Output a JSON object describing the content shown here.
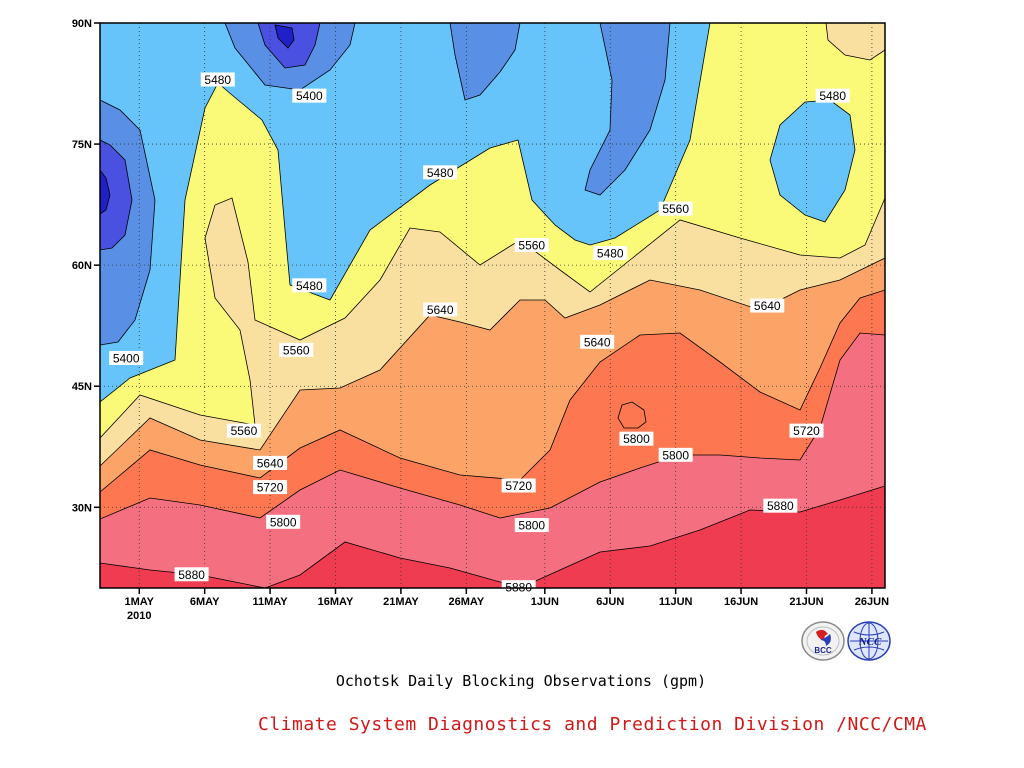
{
  "title": "Ochotsk Daily Blocking Observations (gpm)",
  "credit": "Climate System Diagnostics and Prediction Division /NCC/CMA",
  "logos": {
    "bcc": {
      "icon": "bcc-logo",
      "text": "BCC"
    },
    "ncc": {
      "icon": "ncc-logo",
      "text": "NCC"
    }
  },
  "chart_data": {
    "type": "heatmap",
    "subtype": "filled-contour time-latitude",
    "variable": "500hPa geopotential height (gpm)",
    "x_ticks": [
      "1MAY",
      "6MAY",
      "11MAY",
      "16MAY",
      "21MAY",
      "26MAY",
      "1JUN",
      "6JUN",
      "11JUN",
      "16JUN",
      "21JUN",
      "26JUN"
    ],
    "x_year": "2010",
    "xlim": [
      "2010-04-28",
      "2010-06-27"
    ],
    "y_ticks": [
      "30N",
      "45N",
      "60N",
      "75N",
      "90N"
    ],
    "y_tick_values": [
      30,
      45,
      60,
      75,
      90
    ],
    "ylim": [
      20,
      90
    ],
    "grid": true,
    "grid_style": "dotted",
    "levels": [
      5320,
      5400,
      5480,
      5560,
      5640,
      5720,
      5800,
      5880
    ],
    "fill_colors": {
      "below_5320": "#2020c8",
      "5320_5400": "#4a50e0",
      "5400_5480": "#5a8fe6",
      "5480_5560": "#66c4fa",
      "5560_5640": "#fafa78",
      "5640_5720": "#fae0a0",
      "5720_5800": "#fca468",
      "5800_5880": "#fd7850",
      "5880_5960": "#f47080",
      "above_5960": "#f03c50"
    },
    "contour_labels": [
      {
        "value": 5480,
        "date": "2010-05-07",
        "lat": 83
      },
      {
        "value": 5400,
        "date": "2010-05-14",
        "lat": 81
      },
      {
        "value": 5480,
        "date": "2010-06-23",
        "lat": 81
      },
      {
        "value": 5480,
        "date": "2010-05-24",
        "lat": 71.5
      },
      {
        "value": 5560,
        "date": "2010-06-11",
        "lat": 67
      },
      {
        "value": 5560,
        "date": "2010-05-31",
        "lat": 62.5
      },
      {
        "value": 5480,
        "date": "2010-06-06",
        "lat": 61.5
      },
      {
        "value": 5480,
        "date": "2010-05-14",
        "lat": 57.5
      },
      {
        "value": 5640,
        "date": "2010-05-24",
        "lat": 54.5
      },
      {
        "value": 5640,
        "date": "2010-06-18",
        "lat": 55
      },
      {
        "value": 5640,
        "date": "2010-06-05",
        "lat": 50.5
      },
      {
        "value": 5400,
        "date": "2010-04-30",
        "lat": 48.5
      },
      {
        "value": 5560,
        "date": "2010-05-13",
        "lat": 49.5
      },
      {
        "value": 5560,
        "date": "2010-05-09",
        "lat": 39.5
      },
      {
        "value": 5640,
        "date": "2010-05-11",
        "lat": 35.5
      },
      {
        "value": 5720,
        "date": "2010-06-21",
        "lat": 39.5
      },
      {
        "value": 5800,
        "date": "2010-06-08",
        "lat": 38.5
      },
      {
        "value": 5720,
        "date": "2010-05-11",
        "lat": 32.5
      },
      {
        "value": 5720,
        "date": "2010-05-30",
        "lat": 32.7
      },
      {
        "value": 5800,
        "date": "2010-06-11",
        "lat": 36.5
      },
      {
        "value": 5800,
        "date": "2010-05-12",
        "lat": 28.2
      },
      {
        "value": 5800,
        "date": "2010-05-31",
        "lat": 27.8
      },
      {
        "value": 5880,
        "date": "2010-06-19",
        "lat": 30.2
      },
      {
        "value": 5880,
        "date": "2010-05-05",
        "lat": 21.7
      },
      {
        "value": 5880,
        "date": "2010-05-30",
        "lat": 20.1
      }
    ]
  }
}
